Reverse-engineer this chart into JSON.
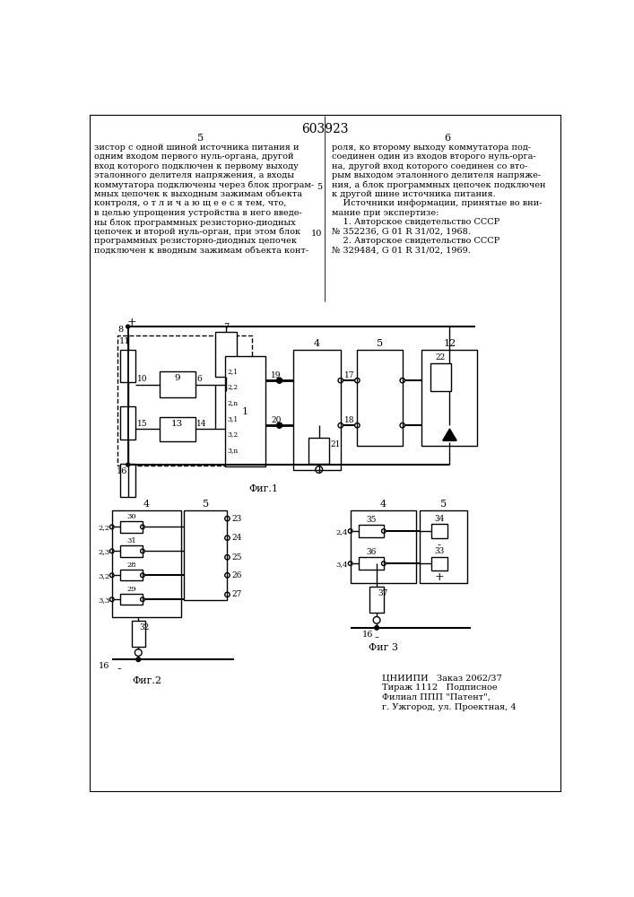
{
  "page_number": "603923",
  "col_left": "5",
  "col_right": "6",
  "text_left": [
    "зистор с одной шиной источника питания и",
    "одним входом первого нуль-органа, другой",
    "вход которого подключен к первому выходу",
    "эталонного делителя напряжения, а входы",
    "коммутатора подключены через блок програм-",
    "мных цепочек к выходным зажимам объекта",
    "контроля, о т л и ч а ю щ е е с я тем, что,",
    "в целью упрощения устройства в него введе-",
    "ны блок программных резисторно-диодных",
    "цепочек и второй нуль-орган, при этом блок",
    "программных резисторно-диодных цепочек",
    "подключен к вводным зажимам объекта конт-"
  ],
  "text_right": [
    "роля, ко второму выходу коммутатора под-",
    "соединен один из входов второго нуль-орга-",
    "на, другой вход которого соединен со вто-",
    "рым выходом эталонного делителя напряже-",
    "ния, а блок программных цепочек подключен",
    "к другой шине источника питания.",
    "    Источники информации, принятые во вни-",
    "мание при экспертизе:",
    "    1. Авторское свидетельство СССР",
    "№ 352236, G 01 R 31/02, 1968.",
    "    2. Авторское свидетельство СССР",
    "№ 329484, G 01 R 31/02, 1969."
  ],
  "inline_num_5": "5",
  "inline_num_10": "10",
  "footer_line1": "ЦНИИПИ   Заказ 2062/37",
  "footer_line2": "Тираж 1112   Подписное",
  "footer_line3": "Филиал ППП \"Патент\",",
  "footer_line4": "г. Ужгород, ул. Проектная, 4",
  "fig1_caption": "Фиг.1",
  "fig2_caption": "Фиг.2",
  "fig3_caption": "Фиг 3",
  "bg_color": "#ffffff",
  "text_color": "#000000"
}
